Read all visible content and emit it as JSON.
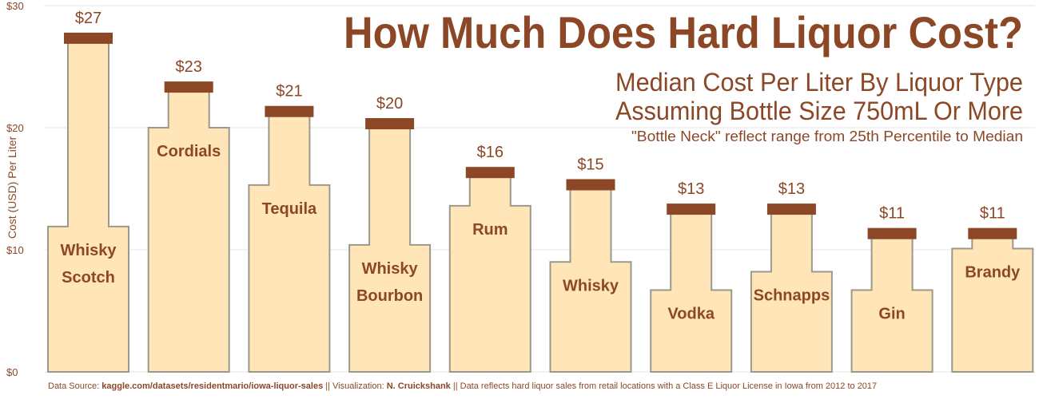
{
  "caption": {
    "source_label": "Data Source: ",
    "source_url": "kaggle.com/datasets/residentmario/iowa-liquor-sales",
    "viz_label": "  || Visualization: ",
    "author": "N. Cruickshank",
    "note": " || Data reflects  hard liquor sales from retail locations with a Class E Liquor License in Iowa from 2012 to 2017"
  },
  "colors": {
    "bottle_fill": "#ffe5b8",
    "bottle_stroke": "#9a9a8c",
    "cap": "#8b4726",
    "text": "#8b4726",
    "grid": "#e6e6e6"
  },
  "chart_data": {
    "type": "bar",
    "title": "How Much Does Hard Liquor Cost?",
    "subtitle_lines": [
      "Median Cost Per Liter By Liquor Type",
      "Assuming Bottle Size 750mL Or More"
    ],
    "note": "\"Bottle Neck\" reflect range from 25th Percentile to Median",
    "ylabel": "Cost (USD) Per Liter",
    "ylim": [
      0,
      30
    ],
    "yticks": [
      0,
      10,
      20,
      30
    ],
    "ytick_labels": [
      "$0",
      "$10",
      "$20",
      "$30"
    ],
    "grid": true,
    "categories": [
      [
        "Whisky",
        "Scotch"
      ],
      [
        "Cordials"
      ],
      [
        "Tequila"
      ],
      [
        "Whisky",
        "Bourbon"
      ],
      [
        "Rum"
      ],
      [
        "Whisky"
      ],
      [
        "Vodka"
      ],
      [
        "Schnapps"
      ],
      [
        "Gin"
      ],
      [
        "Brandy"
      ]
    ],
    "median": [
      27,
      23,
      21,
      20,
      16,
      15,
      13,
      13,
      11,
      11
    ],
    "value_labels": [
      "$27",
      "$23",
      "$21",
      "$20",
      "$16",
      "$15",
      "$13",
      "$13",
      "$11",
      "$11"
    ],
    "p25": [
      11.9,
      20.0,
      15.3,
      10.4,
      13.6,
      9.0,
      6.7,
      8.2,
      6.7,
      10.1
    ]
  }
}
